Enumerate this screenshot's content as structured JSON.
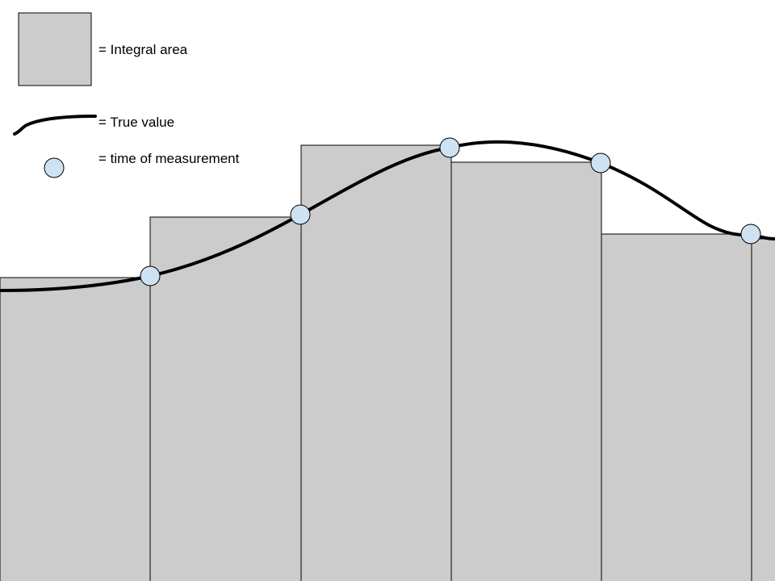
{
  "legend": {
    "area_label": "= Integral area",
    "curve_label": "= True value",
    "point_label": "= time of measurement"
  },
  "colors": {
    "area_fill": "#cccccc",
    "area_stroke": "#000000",
    "curve": "#000000",
    "point_fill": "#cfe2f3",
    "point_stroke": "#000000",
    "background": "#ffffff"
  },
  "icons": {
    "area_swatch": "gray-square",
    "curve_swatch": "black-curve",
    "point_swatch": "light-blue-circle"
  }
}
